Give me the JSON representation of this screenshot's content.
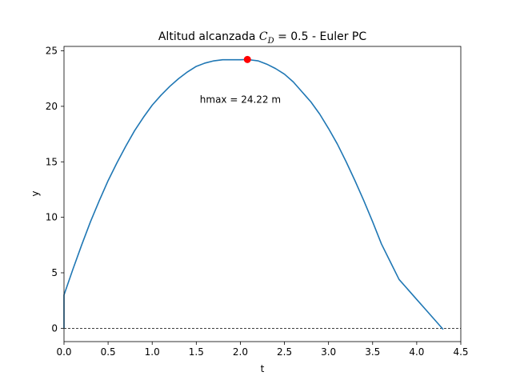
{
  "chart_data": {
    "type": "line",
    "title_prefix": "Altitud alcanzada ",
    "title_math_main": "C",
    "title_math_sub": "D",
    "title_math_rest": " = 0.5",
    "title_suffix": " - Euler PC",
    "xlabel": "t",
    "ylabel": "y",
    "xlim": [
      0,
      4.5
    ],
    "ylim": [
      -1.2,
      25.4
    ],
    "xticks": [
      "0.0",
      "0.5",
      "1.0",
      "1.5",
      "2.0",
      "2.5",
      "3.0",
      "3.5",
      "4.0",
      "4.5"
    ],
    "yticks": [
      "0",
      "5",
      "10",
      "15",
      "20",
      "25"
    ],
    "grid": false,
    "series": [
      {
        "color": "#1f77b4",
        "x": [
          0.0,
          0.0,
          0.1,
          0.2,
          0.3,
          0.4,
          0.5,
          0.6,
          0.7,
          0.8,
          0.9,
          1.0,
          1.1,
          1.2,
          1.3,
          1.4,
          1.5,
          1.6,
          1.7,
          1.8,
          1.9,
          2.0,
          2.08,
          2.2,
          2.3,
          2.4,
          2.5,
          2.6,
          2.7,
          2.8,
          2.9,
          3.0,
          3.1,
          3.2,
          3.3,
          3.4,
          3.5,
          3.6,
          3.7,
          3.8,
          3.9,
          4.0,
          4.1,
          4.2,
          4.3
        ],
        "y": [
          0.0,
          3.0,
          5.3,
          7.5,
          9.6,
          11.5,
          13.3,
          14.9,
          16.4,
          17.8,
          19.0,
          20.1,
          21.0,
          21.8,
          22.5,
          23.1,
          23.6,
          23.9,
          24.1,
          24.2,
          24.2,
          24.2,
          24.22,
          24.1,
          23.8,
          23.4,
          22.9,
          22.2,
          21.3,
          20.4,
          19.3,
          18.0,
          16.6,
          15.0,
          13.3,
          11.5,
          9.6,
          7.6,
          6.0,
          4.4,
          3.5,
          2.6,
          1.7,
          0.8,
          -0.1
        ]
      }
    ],
    "reference_line": {
      "y": 0,
      "style": "dashed",
      "color": "#000000"
    },
    "max_marker": {
      "x": 2.08,
      "y": 24.22,
      "color": "#ff0000"
    },
    "annotation": {
      "text": "hmax = 24.22 m",
      "x": 2.0,
      "y": 20.3
    }
  }
}
